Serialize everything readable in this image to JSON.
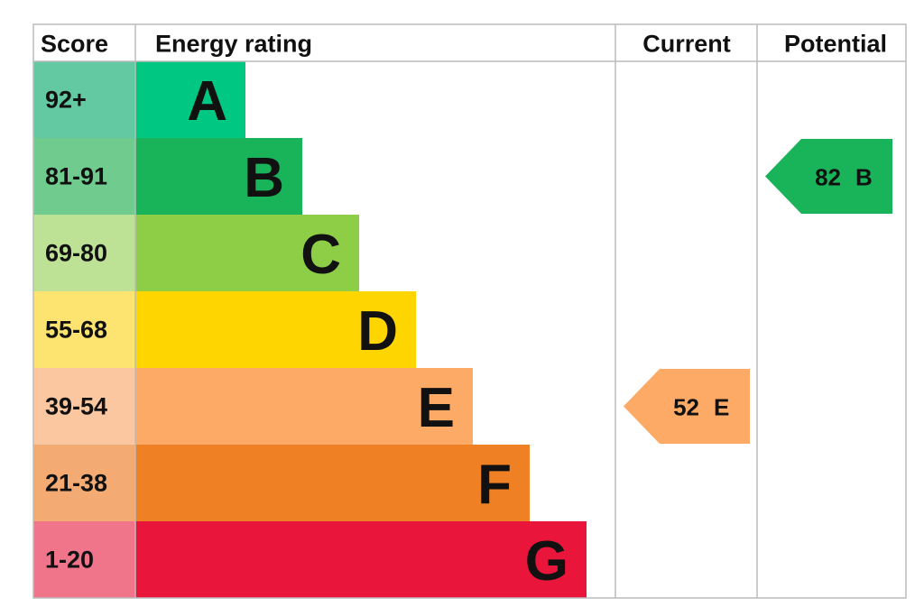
{
  "chart_data": {
    "type": "epc",
    "headers": [
      "Score",
      "Energy rating",
      "Current",
      "Potential"
    ],
    "bands": [
      {
        "score": "92+",
        "letter": "A",
        "color": "#00c781",
        "score_color": "#62c9a2"
      },
      {
        "score": "81-91",
        "letter": "B",
        "color": "#19b459",
        "score_color": "#6fcb8e"
      },
      {
        "score": "69-80",
        "letter": "C",
        "color": "#8dce46",
        "score_color": "#bde195"
      },
      {
        "score": "55-68",
        "letter": "D",
        "color": "#ffd500",
        "score_color": "#fde36f"
      },
      {
        "score": "39-54",
        "letter": "E",
        "color": "#fcaa65",
        "score_color": "#fbc7a0"
      },
      {
        "score": "21-38",
        "letter": "F",
        "color": "#ef8023",
        "score_color": "#f3aa73"
      },
      {
        "score": "1-20",
        "letter": "G",
        "color": "#e9153b",
        "score_color": "#f0748a"
      }
    ],
    "current": {
      "value": 52,
      "rating": "E"
    },
    "potential": {
      "value": 82,
      "rating": "B"
    }
  }
}
